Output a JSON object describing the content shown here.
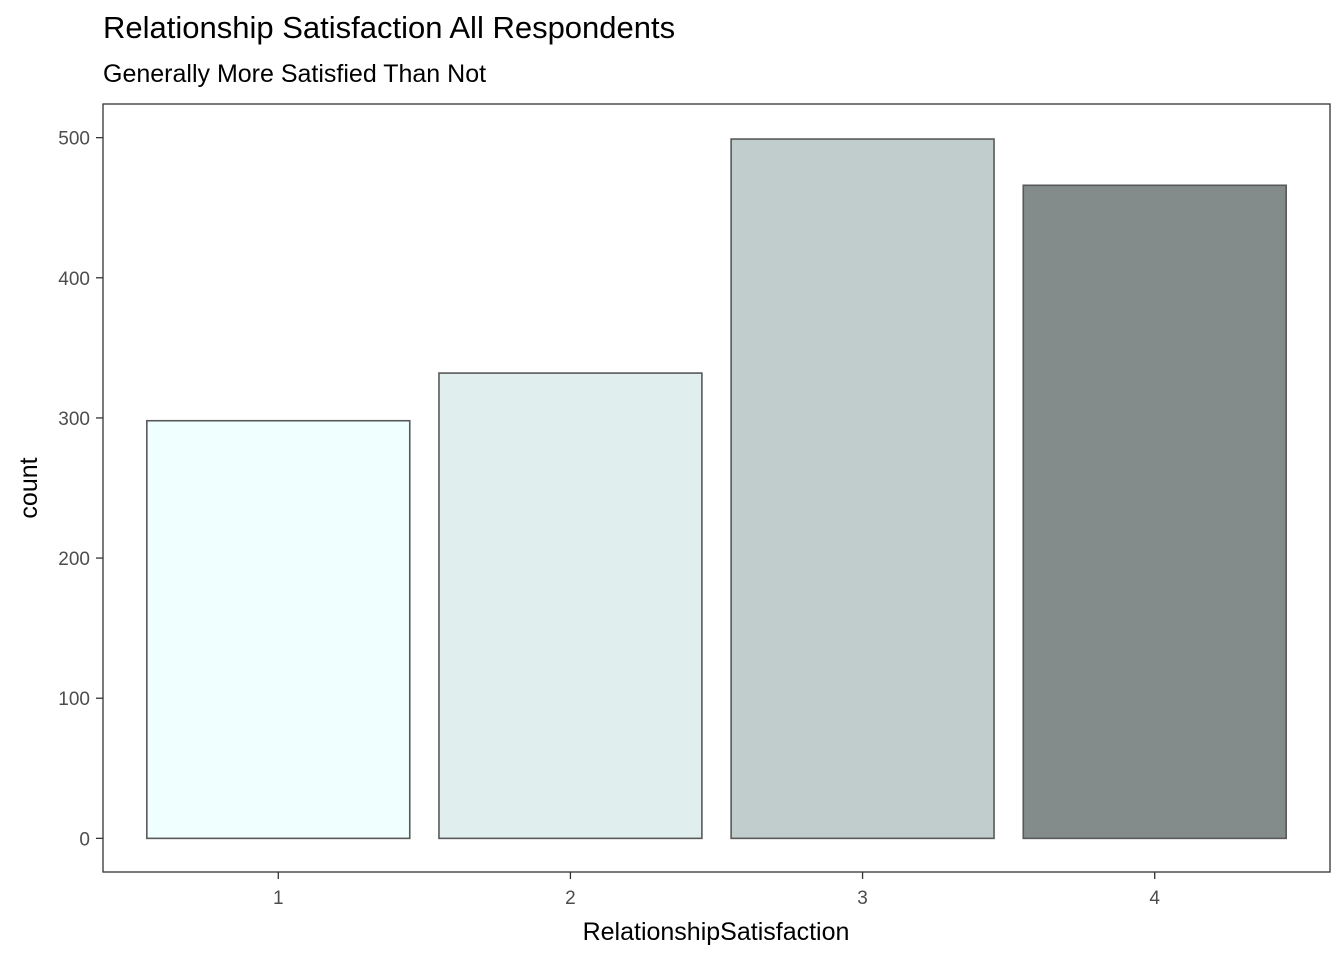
{
  "chart_data": {
    "type": "bar",
    "title": "Relationship Satisfaction All Respondents",
    "subtitle": "Generally More Satisfied Than Not",
    "xlabel": "RelationshipSatisfaction",
    "ylabel": "count",
    "categories": [
      "1",
      "2",
      "3",
      "4"
    ],
    "values": [
      298,
      332,
      499,
      466
    ],
    "colors": [
      "#F0FFFF",
      "#E0EEEE",
      "#C1CDCD",
      "#838B8B"
    ],
    "bar_border_color": "#595959",
    "ylim": [
      -24,
      524
    ],
    "yticks": [
      0,
      100,
      200,
      300,
      400,
      500
    ],
    "grid": false,
    "legend": "none"
  }
}
